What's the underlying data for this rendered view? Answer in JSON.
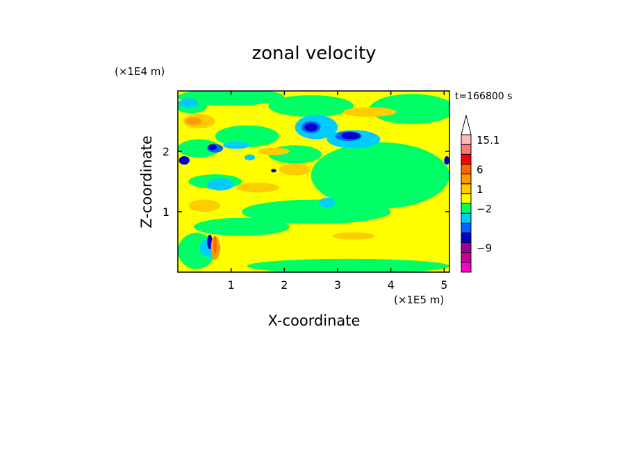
{
  "chart_data": {
    "type": "heatmap",
    "title": "zonal velocity",
    "xlabel": "X-coordinate",
    "ylabel": "Z-coordinate",
    "x_unit": "(×1E5 m)",
    "y_unit": "(×1E4 m)",
    "time_label": "t=166800 s",
    "xlim": [
      0,
      5.1
    ],
    "ylim": [
      0,
      3.0
    ],
    "x_ticks": [
      {
        "value": 1,
        "label": "1"
      },
      {
        "value": 2,
        "label": "2"
      },
      {
        "value": 3,
        "label": "3"
      },
      {
        "value": 4,
        "label": "4"
      },
      {
        "value": 5,
        "label": "5"
      }
    ],
    "y_ticks": [
      {
        "value": 1,
        "label": "1"
      },
      {
        "value": 2,
        "label": "2"
      }
    ],
    "colorbar": {
      "levels": [
        "#ff00cc",
        "#cc0099",
        "#990099",
        "#0000cc",
        "#0066ff",
        "#00ccff",
        "#00ff66",
        "#ffff00",
        "#ffcc00",
        "#ff9900",
        "#ff6600",
        "#ff0000",
        "#ff7777",
        "#ffbbbb",
        "#ffffff"
      ],
      "tick_labels": [
        {
          "label": "15.1",
          "at_level": 13.5
        },
        {
          "label": "6",
          "at_level": 10.5
        },
        {
          "label": "1",
          "at_level": 8.5
        },
        {
          "label": "−2",
          "at_level": 6.5
        },
        {
          "label": "−9",
          "at_level": 2.5
        }
      ]
    },
    "field": {
      "background": "#ffff00",
      "patches": [
        {
          "color": "#00ff66",
          "cx": 0.25,
          "cy": 2.75,
          "rx": 0.3,
          "ry": 0.12
        },
        {
          "color": "#00ff66",
          "cx": 1.0,
          "cy": 2.9,
          "rx": 1.0,
          "ry": 0.14
        },
        {
          "color": "#00ff66",
          "cx": 2.5,
          "cy": 2.75,
          "rx": 0.8,
          "ry": 0.18
        },
        {
          "color": "#00ff66",
          "cx": 4.4,
          "cy": 2.7,
          "rx": 0.8,
          "ry": 0.25
        },
        {
          "color": "#00ff66",
          "cx": 3.8,
          "cy": 1.6,
          "rx": 1.3,
          "ry": 0.55
        },
        {
          "color": "#00ff66",
          "cx": 2.6,
          "cy": 1.0,
          "rx": 1.4,
          "ry": 0.2
        },
        {
          "color": "#00ff66",
          "cx": 1.2,
          "cy": 0.75,
          "rx": 0.9,
          "ry": 0.15
        },
        {
          "color": "#00ff66",
          "cx": 0.35,
          "cy": 0.35,
          "rx": 0.35,
          "ry": 0.3
        },
        {
          "color": "#00ff66",
          "cx": 3.2,
          "cy": 0.1,
          "rx": 1.9,
          "ry": 0.12
        },
        {
          "color": "#00ff66",
          "cx": 1.3,
          "cy": 2.25,
          "rx": 0.6,
          "ry": 0.18
        },
        {
          "color": "#00ff66",
          "cx": 0.4,
          "cy": 2.05,
          "rx": 0.4,
          "ry": 0.15
        },
        {
          "color": "#00ff66",
          "cx": 2.2,
          "cy": 1.95,
          "rx": 0.5,
          "ry": 0.15
        },
        {
          "color": "#00ff66",
          "cx": 0.7,
          "cy": 1.5,
          "rx": 0.5,
          "ry": 0.12
        },
        {
          "color": "#00ccff",
          "cx": 0.2,
          "cy": 2.8,
          "rx": 0.18,
          "ry": 0.08
        },
        {
          "color": "#00ccff",
          "cx": 1.1,
          "cy": 2.1,
          "rx": 0.25,
          "ry": 0.06
        },
        {
          "color": "#00ccff",
          "cx": 0.8,
          "cy": 1.45,
          "rx": 0.25,
          "ry": 0.1
        },
        {
          "color": "#00ccff",
          "cx": 2.6,
          "cy": 2.4,
          "rx": 0.4,
          "ry": 0.2
        },
        {
          "color": "#00ccff",
          "cx": 3.3,
          "cy": 2.2,
          "rx": 0.5,
          "ry": 0.15
        },
        {
          "color": "#00ccff",
          "cx": 2.8,
          "cy": 1.15,
          "rx": 0.15,
          "ry": 0.08
        },
        {
          "color": "#00ccff",
          "cx": 0.6,
          "cy": 0.4,
          "rx": 0.2,
          "ry": 0.15
        },
        {
          "color": "#00ccff",
          "cx": 1.35,
          "cy": 1.9,
          "rx": 0.1,
          "ry": 0.05
        },
        {
          "color": "#0066ff",
          "cx": 2.5,
          "cy": 2.4,
          "rx": 0.18,
          "ry": 0.1
        },
        {
          "color": "#0066ff",
          "cx": 3.2,
          "cy": 2.25,
          "rx": 0.25,
          "ry": 0.08
        },
        {
          "color": "#0066ff",
          "cx": 0.7,
          "cy": 2.05,
          "rx": 0.15,
          "ry": 0.07
        },
        {
          "color": "#0000cc",
          "cx": 2.5,
          "cy": 2.4,
          "rx": 0.12,
          "ry": 0.07
        },
        {
          "color": "#0000cc",
          "cx": 3.25,
          "cy": 2.26,
          "rx": 0.18,
          "ry": 0.06
        },
        {
          "color": "#0000cc",
          "cx": 0.65,
          "cy": 2.07,
          "rx": 0.08,
          "ry": 0.05
        },
        {
          "color": "#0000cc",
          "cx": 0.12,
          "cy": 1.85,
          "rx": 0.1,
          "ry": 0.07
        },
        {
          "color": "#0000cc",
          "cx": 0.6,
          "cy": 0.5,
          "rx": 0.05,
          "ry": 0.12
        },
        {
          "color": "#0000cc",
          "cx": 5.05,
          "cy": 1.85,
          "rx": 0.05,
          "ry": 0.07
        },
        {
          "color": "#0000cc",
          "cx": 1.8,
          "cy": 1.68,
          "rx": 0.05,
          "ry": 0.03
        },
        {
          "color": "#ffcc00",
          "cx": 0.4,
          "cy": 2.5,
          "rx": 0.3,
          "ry": 0.12
        },
        {
          "color": "#ffcc00",
          "cx": 3.6,
          "cy": 2.65,
          "rx": 0.5,
          "ry": 0.08
        },
        {
          "color": "#ffcc00",
          "cx": 1.8,
          "cy": 2.0,
          "rx": 0.3,
          "ry": 0.06
        },
        {
          "color": "#ffcc00",
          "cx": 2.2,
          "cy": 1.7,
          "rx": 0.3,
          "ry": 0.1
        },
        {
          "color": "#ffcc00",
          "cx": 1.5,
          "cy": 1.4,
          "rx": 0.4,
          "ry": 0.08
        },
        {
          "color": "#ffcc00",
          "cx": 0.5,
          "cy": 1.1,
          "rx": 0.3,
          "ry": 0.1
        },
        {
          "color": "#ffcc00",
          "cx": 3.3,
          "cy": 0.6,
          "rx": 0.4,
          "ry": 0.06
        },
        {
          "color": "#ff9900",
          "cx": 0.3,
          "cy": 2.5,
          "rx": 0.15,
          "ry": 0.06
        },
        {
          "color": "#ff9900",
          "cx": 0.7,
          "cy": 0.4,
          "rx": 0.08,
          "ry": 0.2
        },
        {
          "color": "#ff6600",
          "cx": 0.7,
          "cy": 0.45,
          "rx": 0.03,
          "ry": 0.15
        }
      ]
    }
  }
}
